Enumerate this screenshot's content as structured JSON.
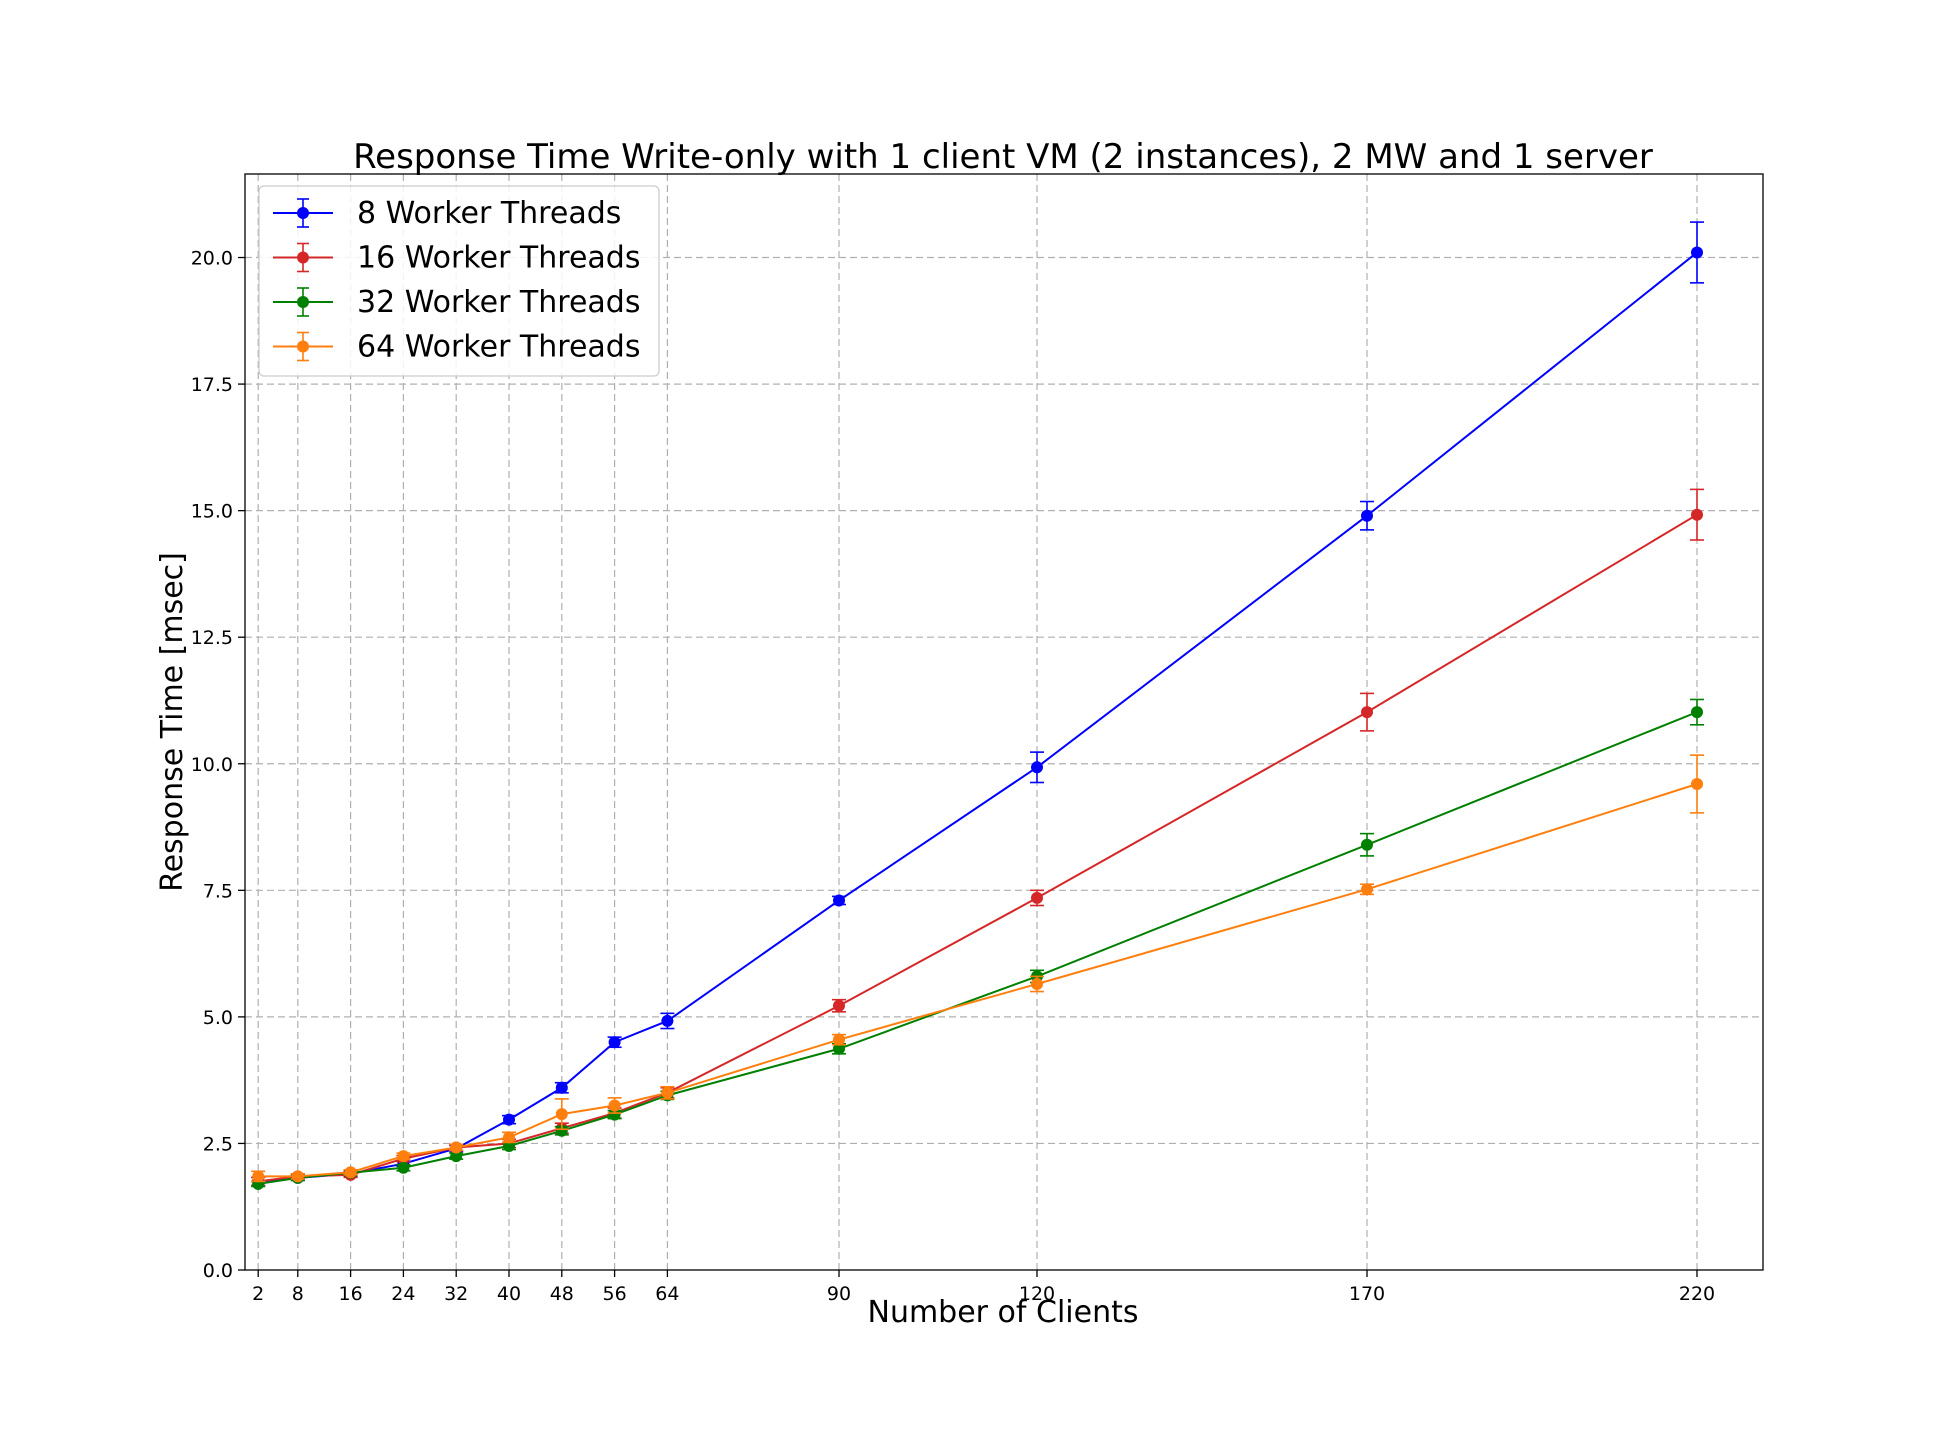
{
  "chart_data": {
    "type": "line",
    "title": "Response Time Write-only with 1 client VM (2 instances), 2 MW and 1 server",
    "xlabel": "Number of Clients",
    "ylabel": "Response Time [msec]",
    "x": [
      2,
      8,
      16,
      24,
      32,
      40,
      48,
      56,
      64,
      90,
      120,
      170,
      220
    ],
    "xticks": [
      "2",
      "8",
      "16",
      "24",
      "32",
      "40",
      "48",
      "56",
      "64",
      "90",
      "120",
      "170",
      "220"
    ],
    "xlim": [
      0,
      230
    ],
    "ylim": [
      0,
      21.65
    ],
    "yticks": [
      "0.0",
      "2.5",
      "5.0",
      "7.5",
      "10.0",
      "12.5",
      "15.0",
      "17.5",
      "20.0"
    ],
    "grid": true,
    "legend_position": "top-left",
    "series": [
      {
        "name": "8 Worker Threads",
        "color": "#0000ff",
        "values": [
          1.75,
          1.82,
          1.9,
          2.1,
          2.4,
          2.97,
          3.6,
          4.5,
          4.92,
          7.3,
          9.93,
          14.9,
          20.1
        ],
        "errors": [
          0.08,
          0.05,
          0.05,
          0.05,
          0.06,
          0.08,
          0.1,
          0.1,
          0.15,
          0.08,
          0.3,
          0.28,
          0.6
        ]
      },
      {
        "name": "16 Worker Threads",
        "color": "#d62728",
        "values": [
          1.75,
          1.85,
          1.88,
          2.2,
          2.42,
          2.5,
          2.8,
          3.1,
          3.5,
          5.22,
          7.35,
          11.02,
          14.92
        ],
        "errors": [
          0.08,
          0.05,
          0.05,
          0.06,
          0.06,
          0.08,
          0.1,
          0.1,
          0.1,
          0.12,
          0.15,
          0.37,
          0.5
        ]
      },
      {
        "name": "32 Worker Threads",
        "color": "#008000",
        "values": [
          1.7,
          1.82,
          1.92,
          2.02,
          2.25,
          2.45,
          2.75,
          3.07,
          3.45,
          4.37,
          5.8,
          8.4,
          11.02
        ],
        "errors": [
          0.05,
          0.05,
          0.05,
          0.06,
          0.06,
          0.07,
          0.08,
          0.08,
          0.08,
          0.1,
          0.12,
          0.22,
          0.25
        ]
      },
      {
        "name": "64 Worker Threads",
        "color": "#ff7f0e",
        "values": [
          1.85,
          1.85,
          1.93,
          2.25,
          2.42,
          2.62,
          3.08,
          3.25,
          3.5,
          4.55,
          5.65,
          7.52,
          9.6
        ],
        "errors": [
          0.1,
          0.05,
          0.05,
          0.06,
          0.06,
          0.1,
          0.3,
          0.15,
          0.12,
          0.1,
          0.15,
          0.1,
          0.57
        ]
      }
    ]
  }
}
